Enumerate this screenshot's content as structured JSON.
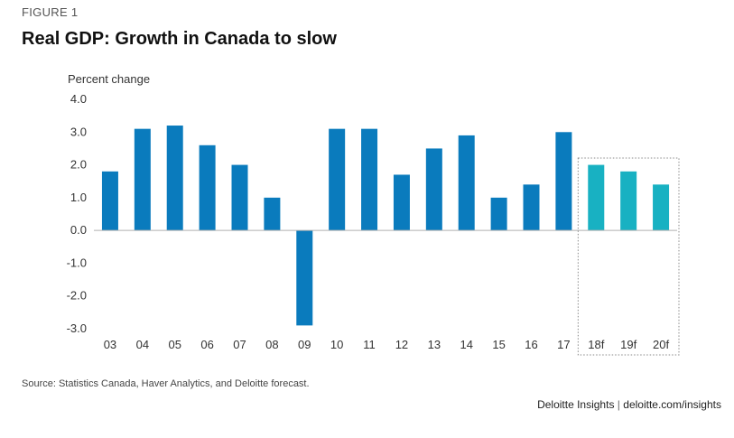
{
  "figure_label": "FIGURE 1",
  "title": "Real GDP: Growth in Canada to slow",
  "source": "Source: Statistics Canada, Haver Analytics, and Deloitte forecast.",
  "branding": {
    "name": "Deloitte Insights",
    "separator": "|",
    "url": "deloitte.com/insights"
  },
  "colors": {
    "actual": "#0a7bbd",
    "forecast": "#18b1c2",
    "axis": "#b0b0b0"
  },
  "chart_data": {
    "type": "bar",
    "ylabel": "Percent change",
    "ylim": [
      -3.0,
      4.0
    ],
    "yticks": [
      "4.0",
      "3.0",
      "2.0",
      "1.0",
      "0.0",
      "-1.0",
      "-2.0",
      "-3.0"
    ],
    "categories": [
      "03",
      "04",
      "05",
      "06",
      "07",
      "08",
      "09",
      "10",
      "11",
      "12",
      "13",
      "14",
      "15",
      "16",
      "17",
      "18f",
      "19f",
      "20f"
    ],
    "values": [
      1.8,
      3.1,
      3.2,
      2.6,
      2.0,
      1.0,
      -2.9,
      3.1,
      3.1,
      1.7,
      2.5,
      2.9,
      1.0,
      1.4,
      3.0,
      2.0,
      1.8,
      1.4
    ],
    "forecast": [
      false,
      false,
      false,
      false,
      false,
      false,
      false,
      false,
      false,
      false,
      false,
      false,
      false,
      false,
      false,
      true,
      true,
      true
    ],
    "grid": false,
    "legend": "none"
  }
}
